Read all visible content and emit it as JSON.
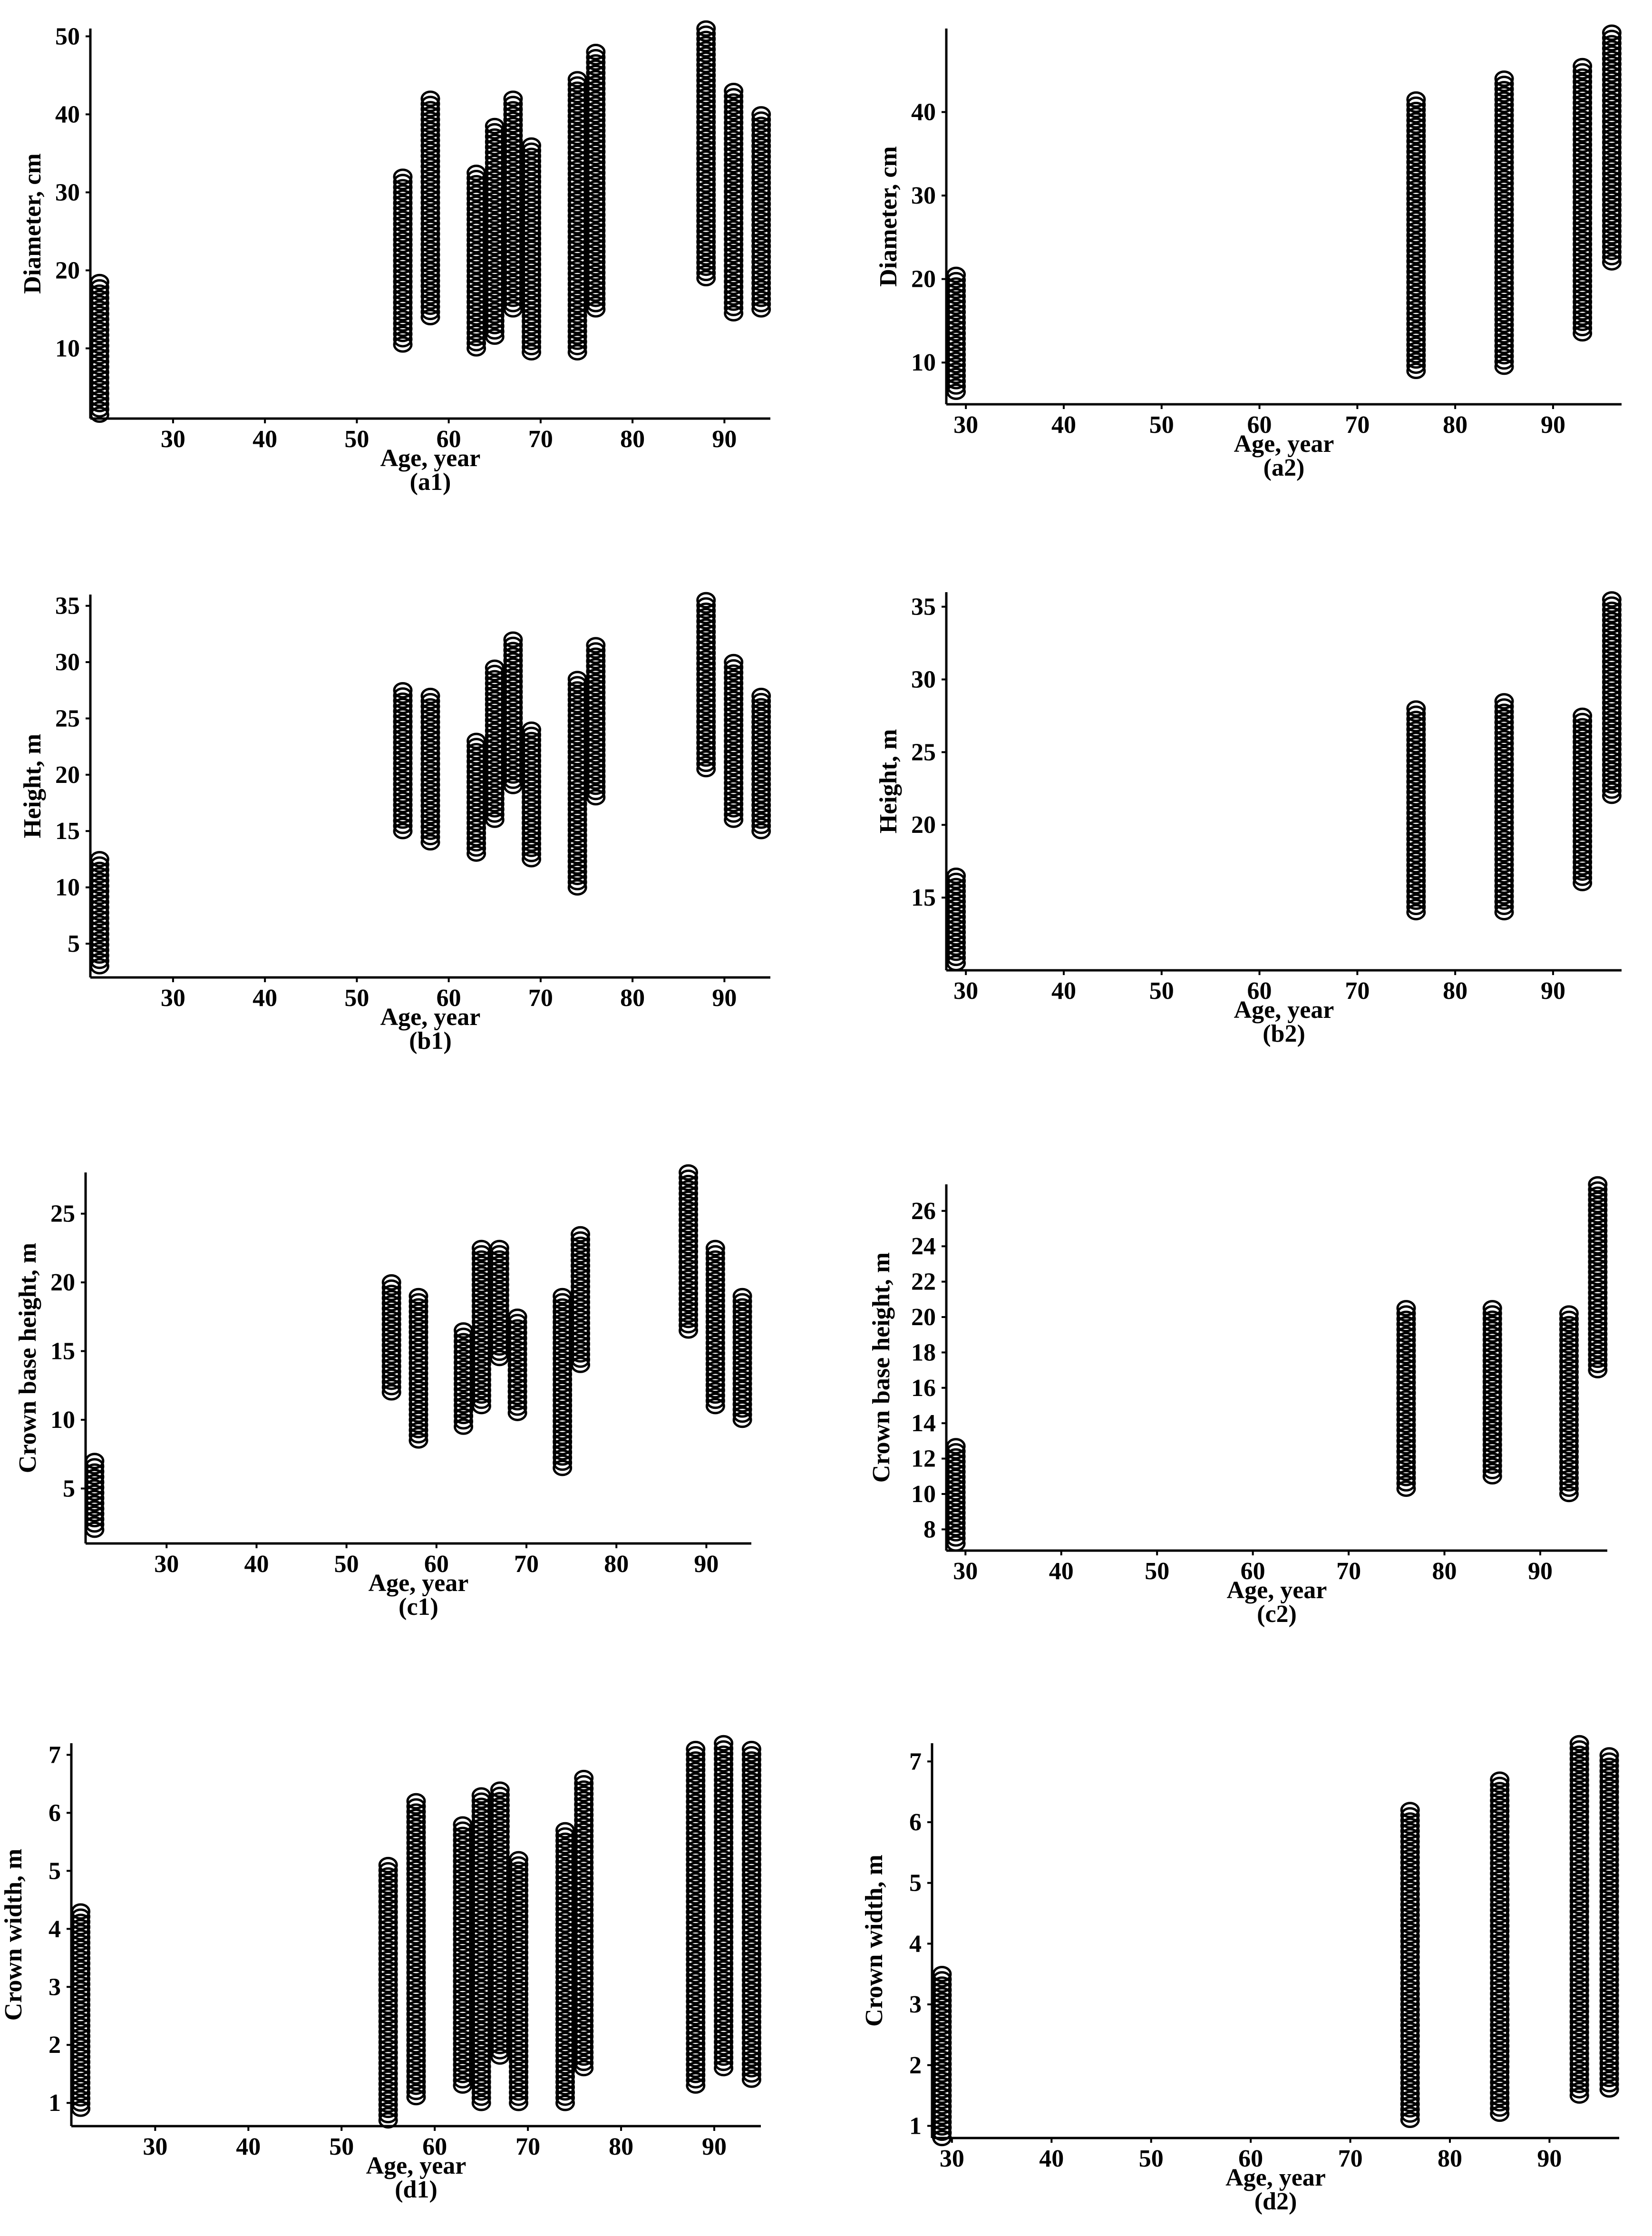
{
  "chart_data": [
    {
      "id": "a1",
      "type": "scatter",
      "panel_label": "(a1)",
      "xlabel": "Age, year",
      "ylabel": "Diameter, cm",
      "xlim": [
        21,
        95
      ],
      "ylim": [
        1,
        51
      ],
      "xticks": [
        30,
        40,
        50,
        60,
        70,
        80,
        90
      ],
      "yticks": [
        10,
        20,
        30,
        40,
        50
      ],
      "groups": [
        {
          "x": 22,
          "min": 1.5,
          "max": 18.5
        },
        {
          "x": 55,
          "min": 10.5,
          "max": 32
        },
        {
          "x": 58,
          "min": 14,
          "max": 42
        },
        {
          "x": 63,
          "min": 10,
          "max": 32.5
        },
        {
          "x": 65,
          "min": 11.5,
          "max": 38.5
        },
        {
          "x": 67,
          "min": 15,
          "max": 42
        },
        {
          "x": 69,
          "min": 9.5,
          "max": 36
        },
        {
          "x": 74,
          "min": 9.5,
          "max": 44.5
        },
        {
          "x": 76,
          "min": 15,
          "max": 48
        },
        {
          "x": 88,
          "min": 19,
          "max": 51
        },
        {
          "x": 91,
          "min": 14.5,
          "max": 43
        },
        {
          "x": 94,
          "min": 15,
          "max": 40
        }
      ]
    },
    {
      "id": "a2",
      "type": "scatter",
      "panel_label": "(a2)",
      "xlabel": "Age, year",
      "ylabel": "Diameter, cm",
      "xlim": [
        28,
        97
      ],
      "ylim": [
        5,
        50
      ],
      "xticks": [
        30,
        40,
        50,
        60,
        70,
        80,
        90
      ],
      "yticks": [
        10,
        20,
        30,
        40
      ],
      "groups": [
        {
          "x": 29,
          "min": 6.5,
          "max": 20.5
        },
        {
          "x": 76,
          "min": 9,
          "max": 41.5
        },
        {
          "x": 85,
          "min": 9.5,
          "max": 44
        },
        {
          "x": 93,
          "min": 13.5,
          "max": 45.5
        },
        {
          "x": 96,
          "min": 22,
          "max": 49.5
        }
      ]
    },
    {
      "id": "b1",
      "type": "scatter",
      "panel_label": "(b1)",
      "xlabel": "Age, year",
      "ylabel": "Height, m",
      "xlim": [
        21,
        95
      ],
      "ylim": [
        2,
        36
      ],
      "xticks": [
        30,
        40,
        50,
        60,
        70,
        80,
        90
      ],
      "yticks": [
        5,
        10,
        15,
        20,
        25,
        30,
        35
      ],
      "groups": [
        {
          "x": 22,
          "min": 3,
          "max": 12.5
        },
        {
          "x": 55,
          "min": 15,
          "max": 27.5
        },
        {
          "x": 58,
          "min": 14,
          "max": 27
        },
        {
          "x": 63,
          "min": 13,
          "max": 23
        },
        {
          "x": 65,
          "min": 16,
          "max": 29.5
        },
        {
          "x": 67,
          "min": 19,
          "max": 32
        },
        {
          "x": 69,
          "min": 12.5,
          "max": 24
        },
        {
          "x": 74,
          "min": 10,
          "max": 28.5
        },
        {
          "x": 76,
          "min": 18,
          "max": 31.5
        },
        {
          "x": 88,
          "min": 20.5,
          "max": 35.5
        },
        {
          "x": 91,
          "min": 16,
          "max": 30
        },
        {
          "x": 94,
          "min": 15,
          "max": 27
        }
      ]
    },
    {
      "id": "b2",
      "type": "scatter",
      "panel_label": "(b2)",
      "xlabel": "Age, year",
      "ylabel": "Height, m",
      "xlim": [
        28,
        97
      ],
      "ylim": [
        10,
        36
      ],
      "xticks": [
        30,
        40,
        50,
        60,
        70,
        80,
        90
      ],
      "yticks": [
        15,
        20,
        25,
        30,
        35
      ],
      "groups": [
        {
          "x": 29,
          "min": 10.5,
          "max": 16.5
        },
        {
          "x": 76,
          "min": 14,
          "max": 28
        },
        {
          "x": 85,
          "min": 14,
          "max": 28.5
        },
        {
          "x": 93,
          "min": 16,
          "max": 27.5
        },
        {
          "x": 96,
          "min": 22,
          "max": 35.5
        }
      ]
    },
    {
      "id": "c1",
      "type": "scatter",
      "panel_label": "(c1)",
      "xlabel": "Age, year",
      "ylabel": "Crown base height, m",
      "xlim": [
        21,
        95
      ],
      "ylim": [
        1,
        28
      ],
      "xticks": [
        30,
        40,
        50,
        60,
        70,
        80,
        90
      ],
      "yticks": [
        5,
        10,
        15,
        20,
        25
      ],
      "groups": [
        {
          "x": 22,
          "min": 2,
          "max": 7
        },
        {
          "x": 55,
          "min": 12,
          "max": 20
        },
        {
          "x": 58,
          "min": 8.5,
          "max": 19
        },
        {
          "x": 63,
          "min": 9.5,
          "max": 16.5
        },
        {
          "x": 65,
          "min": 11,
          "max": 22.5
        },
        {
          "x": 67,
          "min": 14.5,
          "max": 22.5
        },
        {
          "x": 69,
          "min": 10.5,
          "max": 17.5
        },
        {
          "x": 74,
          "min": 6.5,
          "max": 19
        },
        {
          "x": 76,
          "min": 14,
          "max": 23.5
        },
        {
          "x": 88,
          "min": 16.5,
          "max": 28
        },
        {
          "x": 91,
          "min": 11,
          "max": 22.5
        },
        {
          "x": 94,
          "min": 10,
          "max": 19
        }
      ]
    },
    {
      "id": "c2",
      "type": "scatter",
      "panel_label": "(c2)",
      "xlabel": "Age, year",
      "ylabel": "Crown base height, m",
      "xlim": [
        28,
        97
      ],
      "ylim": [
        6.8,
        27.5
      ],
      "xticks": [
        30,
        40,
        50,
        60,
        70,
        80,
        90
      ],
      "yticks": [
        8,
        10,
        12,
        14,
        16,
        18,
        20,
        22,
        24,
        26
      ],
      "groups": [
        {
          "x": 29,
          "min": 7.2,
          "max": 12.7
        },
        {
          "x": 76,
          "min": 10.3,
          "max": 20.5
        },
        {
          "x": 85,
          "min": 11,
          "max": 20.5
        },
        {
          "x": 93,
          "min": 10,
          "max": 20.2
        },
        {
          "x": 96,
          "min": 17,
          "max": 27.5
        }
      ]
    },
    {
      "id": "d1",
      "type": "scatter",
      "panel_label": "(d1)",
      "xlabel": "Age, year",
      "ylabel": "Crown width, m",
      "xlim": [
        21,
        95
      ],
      "ylim": [
        0.6,
        7.2
      ],
      "xticks": [
        30,
        40,
        50,
        60,
        70,
        80,
        90
      ],
      "yticks": [
        1,
        2,
        3,
        4,
        5,
        6,
        7
      ],
      "groups": [
        {
          "x": 22,
          "min": 0.9,
          "max": 4.3
        },
        {
          "x": 55,
          "min": 0.7,
          "max": 5.1
        },
        {
          "x": 58,
          "min": 1.1,
          "max": 6.2
        },
        {
          "x": 63,
          "min": 1.3,
          "max": 5.8
        },
        {
          "x": 65,
          "min": 1,
          "max": 6.3
        },
        {
          "x": 67,
          "min": 1.8,
          "max": 6.4
        },
        {
          "x": 69,
          "min": 1,
          "max": 5.2
        },
        {
          "x": 74,
          "min": 1,
          "max": 5.7
        },
        {
          "x": 76,
          "min": 1.6,
          "max": 6.6
        },
        {
          "x": 88,
          "min": 1.3,
          "max": 7.1
        },
        {
          "x": 91,
          "min": 1.6,
          "max": 7.2
        },
        {
          "x": 94,
          "min": 1.4,
          "max": 7.1
        }
      ]
    },
    {
      "id": "d2",
      "type": "scatter",
      "panel_label": "(d2)",
      "xlabel": "Age, year",
      "ylabel": "Crown width, m",
      "xlim": [
        28,
        97
      ],
      "ylim": [
        0.8,
        7.3
      ],
      "xticks": [
        30,
        40,
        50,
        60,
        70,
        80,
        90
      ],
      "yticks": [
        1,
        2,
        3,
        4,
        5,
        6,
        7
      ],
      "groups": [
        {
          "x": 29,
          "min": 0.8,
          "max": 3.5
        },
        {
          "x": 76,
          "min": 1.1,
          "max": 6.2
        },
        {
          "x": 85,
          "min": 1.2,
          "max": 6.7
        },
        {
          "x": 93,
          "min": 1.5,
          "max": 7.3
        },
        {
          "x": 96,
          "min": 1.6,
          "max": 7.1
        }
      ]
    }
  ]
}
